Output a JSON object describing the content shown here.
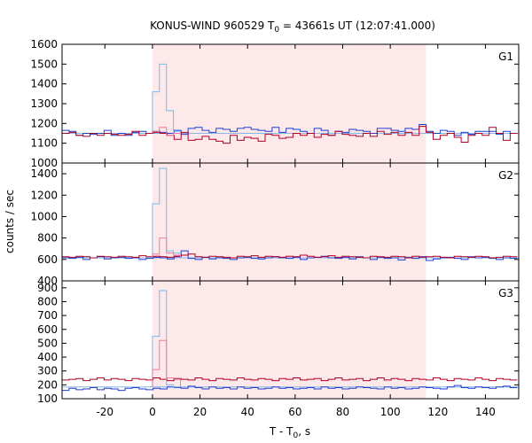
{
  "chart_data": {
    "type": "line",
    "title_main": "KONUS-WIND 960529 T",
    "title_sub": "0",
    "title_rest": " = 43661s UT (12:07:41.000)",
    "xlabel_main": "T - T",
    "xlabel_sub": "0",
    "xlabel_rest": ", s",
    "ylabel": "counts / sec",
    "xlim": [
      -38,
      154
    ],
    "x_ticks": [
      -20,
      0,
      20,
      40,
      60,
      80,
      100,
      120,
      140
    ],
    "x_tick_labels": [
      "-20",
      "0",
      "20",
      "40",
      "60",
      "80",
      "100",
      "120",
      "140"
    ],
    "shaded_interval": [
      0,
      115
    ],
    "colors": {
      "shade": "#fde8ea",
      "blue": "#1f3fd0",
      "red": "#b00022",
      "lightblue": "#6fbdf0",
      "pink": "#f07aa0",
      "avg": "#8ab4e8"
    },
    "panels": [
      {
        "label": "G1",
        "ylim": [
          1000,
          1600
        ],
        "y_ticks": [
          1000,
          1100,
          1200,
          1300,
          1400,
          1500,
          1600
        ],
        "y_tick_labels": [
          "1000",
          "1100",
          "1200",
          "1300",
          "1400",
          "1500",
          "1600"
        ],
        "background": 1150,
        "series": [
          {
            "name": "blue",
            "color_key": "blue",
            "x0": -38,
            "dx": 2.944,
            "values": [
              1165,
              1160,
              1140,
              1150,
              1145,
              1150,
              1165,
              1140,
              1150,
              1140,
              1155,
              1160,
              1150,
              1160,
              1155,
              1150,
              1165,
              1145,
              1175,
              1180,
              1165,
              1155,
              1175,
              1170,
              1160,
              1175,
              1180,
              1170,
              1165,
              1160,
              1180,
              1155,
              1175,
              1170,
              1160,
              1150,
              1175,
              1165,
              1140,
              1160,
              1155,
              1170,
              1165,
              1160,
              1150,
              1175,
              1175,
              1165,
              1160,
              1175,
              1170,
              1195,
              1160,
              1150,
              1165,
              1160,
              1140,
              1155,
              1145,
              1160,
              1160,
              1160,
              1145,
              1160,
              1150
            ]
          },
          {
            "name": "red",
            "color_key": "red",
            "x0": -38,
            "dx": 2.944,
            "values": [
              1150,
              1155,
              1140,
              1135,
              1150,
              1140,
              1150,
              1145,
              1140,
              1145,
              1160,
              1140,
              1150,
              1155,
              1150,
              1140,
              1120,
              1155,
              1115,
              1120,
              1135,
              1120,
              1110,
              1100,
              1140,
              1115,
              1130,
              1125,
              1110,
              1145,
              1140,
              1125,
              1130,
              1150,
              1140,
              1150,
              1130,
              1145,
              1140,
              1160,
              1145,
              1140,
              1135,
              1150,
              1135,
              1160,
              1145,
              1155,
              1140,
              1155,
              1140,
              1185,
              1155,
              1120,
              1140,
              1150,
              1130,
              1105,
              1140,
              1150,
              1140,
              1180,
              1150,
              1115,
              1150
            ]
          },
          {
            "name": "light-blue",
            "color_key": "lightblue",
            "x0": 0,
            "dx": 2.944,
            "values": [
              1360,
              1500,
              1265,
              1160
            ]
          },
          {
            "name": "pink",
            "color_key": "pink",
            "x0": 0,
            "dx": 2.944,
            "values": [
              1160,
              1180,
              1140,
              1150
            ]
          }
        ]
      },
      {
        "label": "G2",
        "ylim": [
          400,
          1500
        ],
        "y_ticks": [
          400,
          600,
          800,
          1000,
          1200,
          1400
        ],
        "y_tick_labels": [
          "400",
          "600",
          "800",
          "1000",
          "1200",
          "1400"
        ],
        "background": 615,
        "series": [
          {
            "name": "blue",
            "color_key": "blue",
            "x0": -38,
            "dx": 2.944,
            "values": [
              615,
              610,
              620,
              600,
              615,
              625,
              605,
              615,
              620,
              610,
              615,
              600,
              610,
              620,
              615,
              605,
              625,
              680,
              610,
              600,
              620,
              605,
              615,
              610,
              600,
              615,
              620,
              610,
              605,
              615,
              625,
              615,
              610,
              620,
              600,
              615,
              620,
              630,
              615,
              610,
              620,
              605,
              625,
              615,
              600,
              620,
              610,
              615,
              595,
              620,
              610,
              625,
              590,
              605,
              615,
              620,
              610,
              600,
              625,
              615,
              620,
              610,
              600,
              615,
              610
            ]
          },
          {
            "name": "red",
            "color_key": "red",
            "x0": -38,
            "dx": 2.944,
            "values": [
              625,
              620,
              630,
              625,
              615,
              630,
              625,
              620,
              630,
              625,
              620,
              635,
              625,
              630,
              625,
              620,
              630,
              640,
              650,
              625,
              620,
              630,
              625,
              620,
              615,
              630,
              625,
              635,
              620,
              630,
              625,
              620,
              630,
              625,
              640,
              630,
              620,
              625,
              635,
              620,
              630,
              625,
              620,
              615,
              630,
              625,
              620,
              630,
              625,
              615,
              630,
              620,
              625,
              630,
              620,
              615,
              630,
              625,
              620,
              630,
              625,
              615,
              620,
              630,
              625
            ]
          },
          {
            "name": "light-blue",
            "color_key": "lightblue",
            "x0": 0,
            "dx": 2.944,
            "values": [
              1120,
              1450,
              680,
              660
            ]
          },
          {
            "name": "pink",
            "color_key": "pink",
            "x0": 0,
            "dx": 2.944,
            "values": [
              650,
              800,
              660,
              640
            ]
          }
        ]
      },
      {
        "label": "G3",
        "ylim": [
          100,
          950
        ],
        "y_ticks": [
          100,
          200,
          300,
          400,
          500,
          600,
          700,
          800,
          900
        ],
        "y_tick_labels": [
          "100",
          "200",
          "300",
          "400",
          "500",
          "600",
          "700",
          "800",
          "900"
        ],
        "background": 185,
        "series": [
          {
            "name": "blue",
            "color_key": "blue",
            "x0": -38,
            "dx": 2.944,
            "values": [
              160,
              175,
              165,
              170,
              180,
              165,
              175,
              170,
              160,
              175,
              180,
              170,
              165,
              175,
              170,
              185,
              180,
              175,
              190,
              180,
              170,
              185,
              175,
              180,
              170,
              185,
              175,
              180,
              170,
              175,
              185,
              175,
              180,
              170,
              175,
              180,
              170,
              185,
              175,
              180,
              170,
              175,
              185,
              180,
              175,
              170,
              185,
              175,
              180,
              170,
              175,
              185,
              180,
              175,
              170,
              185,
              195,
              180,
              175,
              185,
              180,
              175,
              185,
              190,
              180
            ]
          },
          {
            "name": "red",
            "color_key": "red",
            "x0": -38,
            "dx": 2.944,
            "values": [
              235,
              240,
              245,
              230,
              240,
              250,
              235,
              245,
              240,
              230,
              245,
              240,
              235,
              250,
              240,
              230,
              245,
              240,
              235,
              250,
              240,
              230,
              245,
              240,
              235,
              250,
              240,
              235,
              245,
              240,
              230,
              245,
              240,
              250,
              235,
              240,
              245,
              230,
              240,
              250,
              235,
              240,
              245,
              230,
              240,
              250,
              235,
              245,
              240,
              230,
              245,
              240,
              235,
              250,
              240,
              230,
              245,
              240,
              235,
              250,
              240,
              230,
              245,
              240,
              235
            ]
          },
          {
            "name": "light-blue",
            "color_key": "lightblue",
            "x0": 0,
            "dx": 2.944,
            "values": [
              550,
              880,
              200,
              185
            ]
          },
          {
            "name": "pink",
            "color_key": "pink",
            "x0": 0,
            "dx": 2.944,
            "values": [
              310,
              520,
              250,
              240
            ]
          }
        ]
      }
    ]
  }
}
